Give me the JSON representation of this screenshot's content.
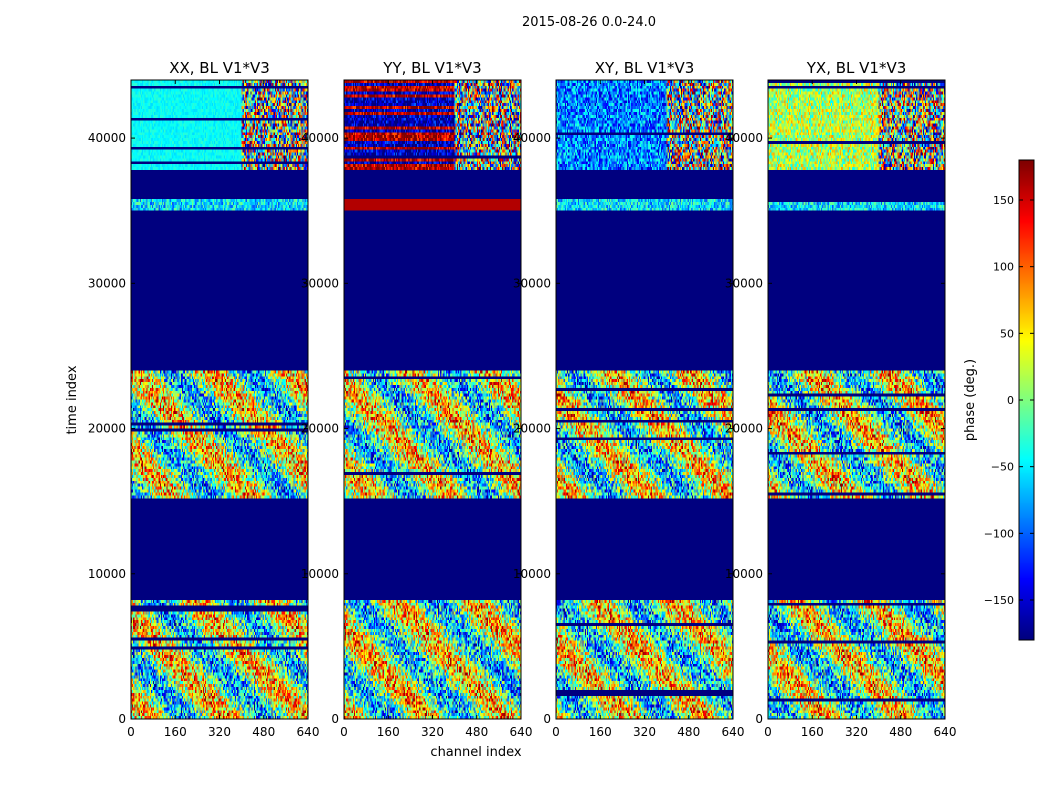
{
  "figure": {
    "suptitle": "2015-08-26 0.0-24.0"
  },
  "colormap": {
    "name": "jet",
    "stops": [
      "#00007f",
      "#0000ff",
      "#007fff",
      "#00ffff",
      "#7fff7f",
      "#ffff00",
      "#ff7f00",
      "#ff0000",
      "#7f0000"
    ]
  },
  "chart_data": {
    "type": "heatmap",
    "xlabel": "channel index",
    "ylabel": "time index",
    "xlim": [
      0,
      640
    ],
    "ylim": [
      0,
      44000
    ],
    "xticks": [
      0,
      160,
      320,
      480,
      640
    ],
    "yticks": [
      0,
      10000,
      20000,
      30000,
      40000
    ],
    "panels": [
      {
        "title": "XX, BL V1*V3",
        "product": "XX"
      },
      {
        "title": "YY, BL V1*V3",
        "product": "YY"
      },
      {
        "title": "XY, BL V1*V3",
        "product": "XY"
      },
      {
        "title": "YX, BL V1*V3",
        "product": "YX"
      }
    ],
    "flagged_time_ranges": [
      [
        8200,
        15200
      ],
      [
        24000,
        35000
      ],
      [
        35800,
        37800
      ]
    ],
    "flagged_value": -180,
    "colorbar": {
      "label": "phase (deg.)",
      "range": [
        -180,
        180
      ],
      "ticks": [
        -150,
        -100,
        -50,
        0,
        50,
        100,
        150
      ],
      "ticklabels": [
        "−150",
        "−100",
        "−50",
        "0",
        "50",
        "100",
        "150"
      ]
    }
  }
}
